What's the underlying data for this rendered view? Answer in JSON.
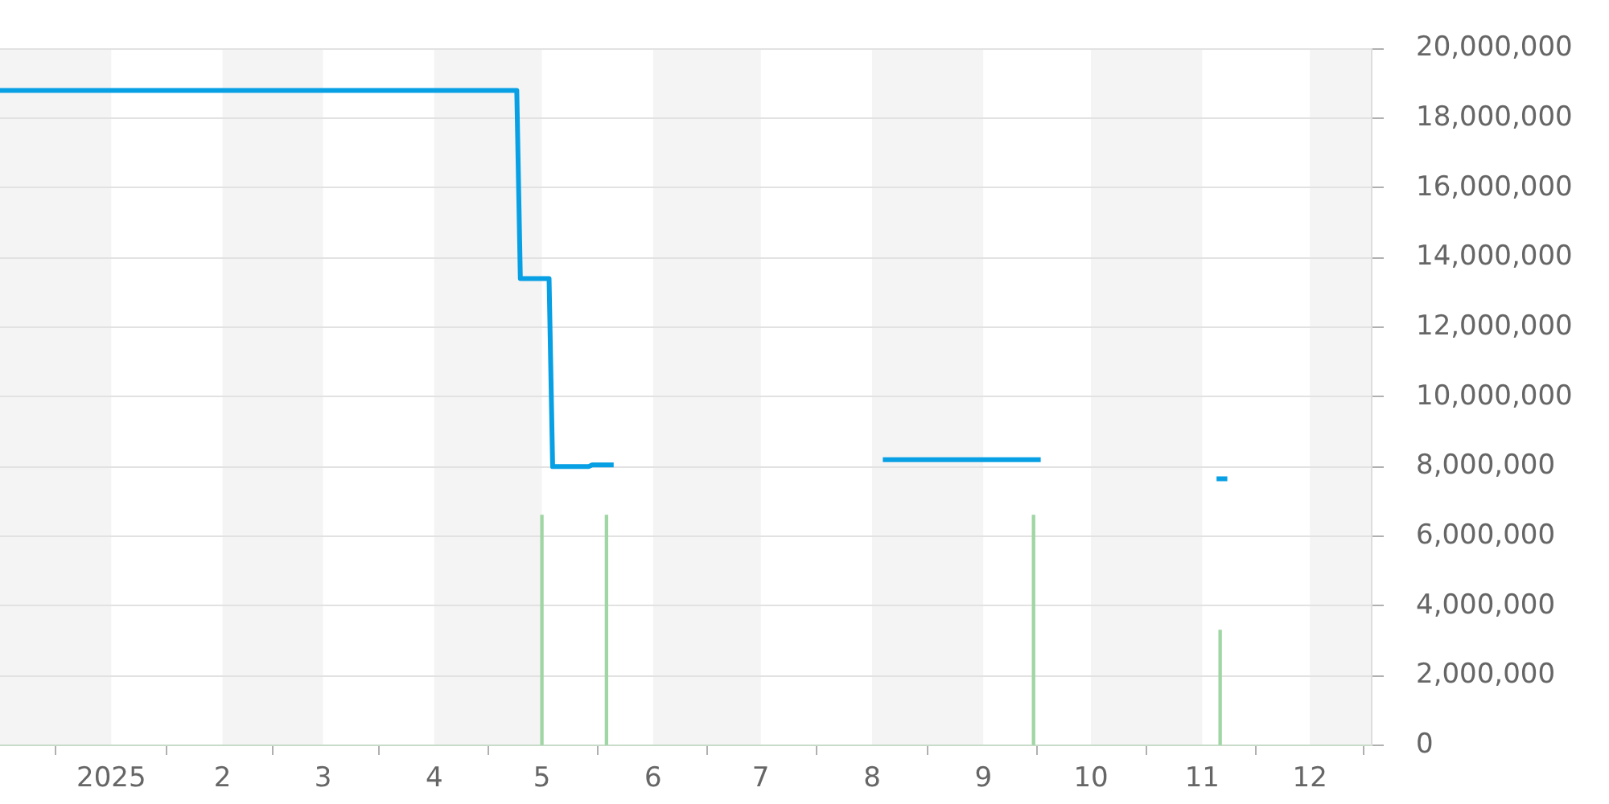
{
  "chart_data": {
    "type": "line",
    "x": [
      "2024-12-01",
      "2025-04-24",
      "2025-04-25",
      "2025-05-03",
      "2025-05-04",
      "2025-05-14",
      "2025-05-15",
      "2025-05-21",
      "2025-07-01",
      "2025-08-04",
      "2025-09-17",
      "2025-10-15",
      "2025-11-05",
      "2025-11-08"
    ],
    "series": [
      {
        "color": "#08a0e4",
        "values": [
          18800000,
          18800000,
          13400000,
          13400000,
          8000000,
          8000000,
          8050000,
          8050000,
          null,
          8200000,
          8200000,
          null,
          7650000,
          7650000
        ]
      },
      {
        "type": "bar",
        "color": "#9fd6a4",
        "x": [
          "2025-05-01",
          "2025-05-19",
          "2025-09-15",
          "2025-11-06"
        ],
        "values": [
          6600000,
          6600000,
          6600000,
          3300000
        ]
      }
    ],
    "xlim": [
      "2024-12-01",
      "2025-12-18"
    ],
    "xticks": [
      {
        "value": "2025-01-01",
        "label": "2025"
      },
      {
        "value": "2025-02-01",
        "label": "2"
      },
      {
        "value": "2025-03-01",
        "label": "3"
      },
      {
        "value": "2025-04-01",
        "label": "4"
      },
      {
        "value": "2025-05-01",
        "label": "5"
      },
      {
        "value": "2025-06-01",
        "label": "6"
      },
      {
        "value": "2025-07-01",
        "label": "7"
      },
      {
        "value": "2025-08-01",
        "label": "8"
      },
      {
        "value": "2025-09-01",
        "label": "9"
      },
      {
        "value": "2025-10-01",
        "label": "10"
      },
      {
        "value": "2025-11-01",
        "label": "11"
      },
      {
        "value": "2025-12-01",
        "label": "12"
      }
    ],
    "ylim": [
      0,
      20000000
    ],
    "yticks": [
      0,
      {
        "value": 2000000,
        "label": "2,000,000"
      },
      {
        "value": 4000000,
        "label": "4,000,000"
      },
      {
        "value": 6000000,
        "label": "6,000,000"
      },
      {
        "value": 8000000,
        "label": "8,000,000"
      },
      {
        "value": 10000000,
        "label": "10,000,000"
      },
      {
        "value": 12000000,
        "label": "12,000,000"
      },
      {
        "value": 14000000,
        "label": "14,000,000"
      },
      {
        "value": 16000000,
        "label": "16,000,000"
      },
      {
        "value": 18000000,
        "label": "18,000,000"
      },
      {
        "value": 20000000,
        "label": "20,000,000"
      }
    ],
    "bands": [
      {
        "axis": "x",
        "from": "2024-12-01",
        "to": "2025-01-01",
        "color": "#f4f4f4"
      },
      {
        "axis": "x",
        "from": "2025-02-01",
        "to": "2025-03-01",
        "color": "#f4f4f4"
      },
      {
        "axis": "x",
        "from": "2025-04-01",
        "to": "2025-05-01",
        "color": "#f4f4f4"
      },
      {
        "axis": "x",
        "from": "2025-06-01",
        "to": "2025-07-01",
        "color": "#f4f4f4"
      },
      {
        "axis": "x",
        "from": "2025-08-01",
        "to": "2025-09-01",
        "color": "#f4f4f4"
      },
      {
        "axis": "x",
        "from": "2025-10-01",
        "to": "2025-11-01",
        "color": "#f4f4f4"
      },
      {
        "axis": "x",
        "from": "2025-12-01",
        "to": "2025-12-18",
        "color": "#f4f4f4"
      }
    ],
    "grid": "y",
    "marker": "none"
  }
}
